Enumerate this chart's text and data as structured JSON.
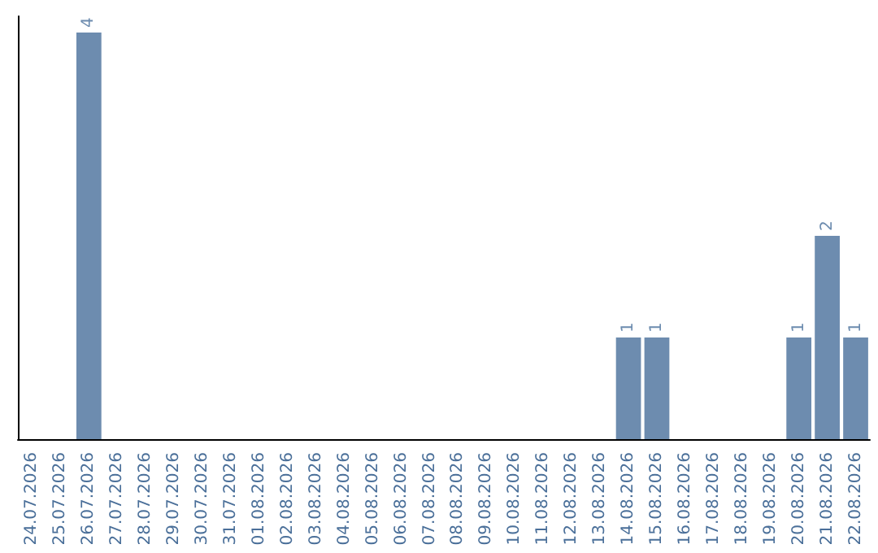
{
  "chart_data": {
    "type": "bar",
    "categories": [
      "24.07.2026",
      "25.07.2026",
      "26.07.2026",
      "27.07.2026",
      "28.07.2026",
      "29.07.2026",
      "30.07.2026",
      "31.07.2026",
      "01.08.2026",
      "02.08.2026",
      "03.08.2026",
      "04.08.2026",
      "05.08.2026",
      "06.08.2026",
      "07.08.2026",
      "08.08.2026",
      "09.08.2026",
      "10.08.2026",
      "11.08.2026",
      "12.08.2026",
      "13.08.2026",
      "14.08.2026",
      "15.08.2026",
      "16.08.2026",
      "17.08.2026",
      "18.08.2026",
      "19.08.2026",
      "20.08.2026",
      "21.08.2026",
      "22.08.2026"
    ],
    "values": [
      0,
      0,
      4,
      0,
      0,
      0,
      0,
      0,
      0,
      0,
      0,
      0,
      0,
      0,
      0,
      0,
      0,
      0,
      0,
      0,
      0,
      1,
      1,
      0,
      0,
      0,
      0,
      1,
      2,
      1
    ],
    "value_labels": [
      null,
      null,
      "4",
      null,
      null,
      null,
      null,
      null,
      null,
      null,
      null,
      null,
      null,
      null,
      null,
      null,
      null,
      null,
      null,
      null,
      null,
      "1",
      "1",
      null,
      null,
      null,
      null,
      "1",
      "2",
      "1"
    ],
    "color": "#6d8caf",
    "grid": false,
    "tick_labels": "x"
  }
}
